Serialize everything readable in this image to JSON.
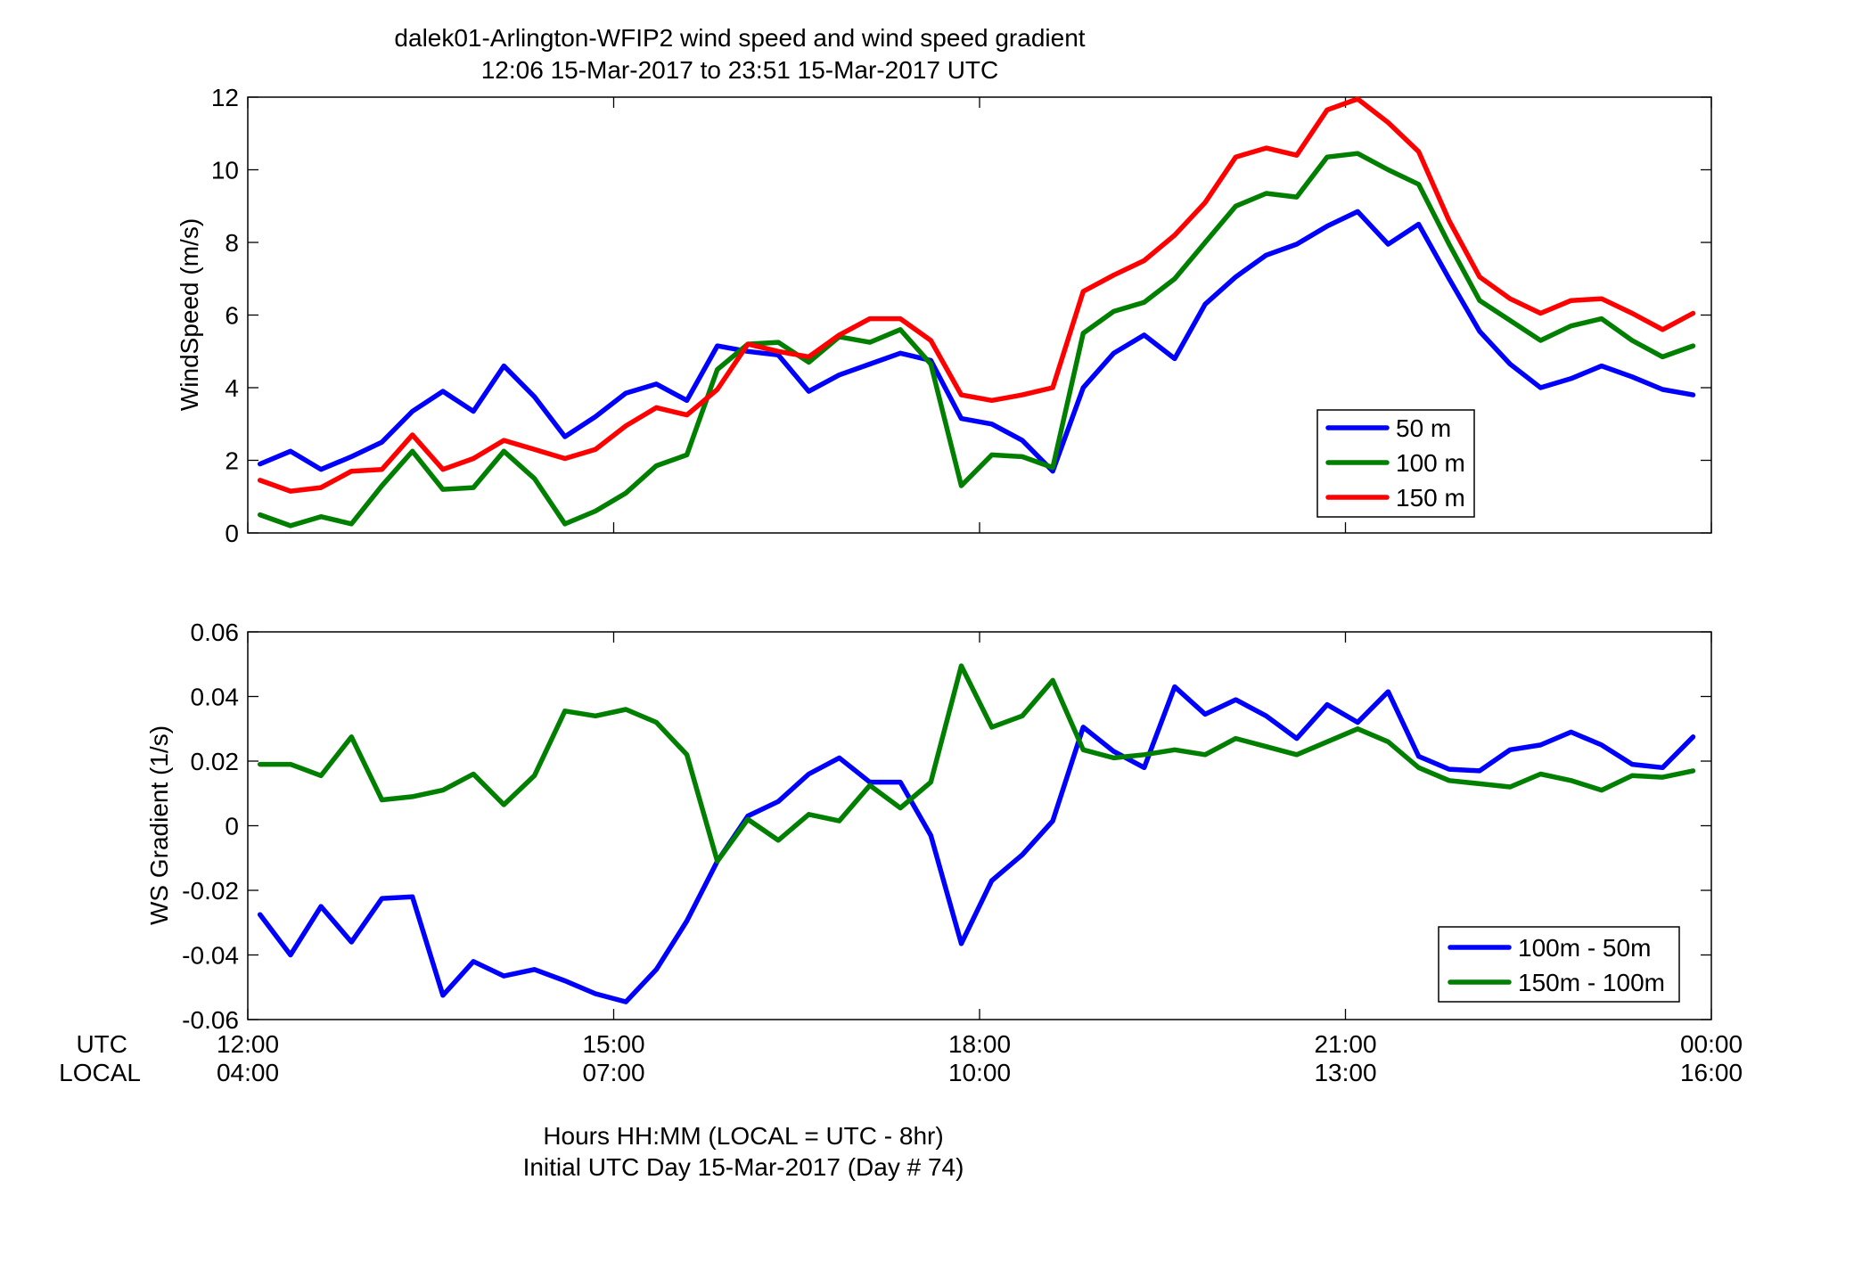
{
  "figure": {
    "title_line1": "dalek01-Arlington-WFIP2  wind speed and wind speed gradient",
    "title_line2": "12:06 15-Mar-2017 to 23:51 15-Mar-2017  UTC",
    "xlabel_line1": "Hours HH:MM  (LOCAL = UTC - 8hr)",
    "xlabel_line2": "Initial UTC Day 15-Mar-2017 (Day # 74)",
    "row_label_utc": "UTC",
    "row_label_local": "LOCAL",
    "utc_ticks": [
      "12:00",
      "15:00",
      "18:00",
      "21:00",
      "00:00"
    ],
    "local_ticks": [
      "04:00",
      "07:00",
      "10:00",
      "13:00",
      "16:00"
    ],
    "x_tick_hours": [
      12,
      15,
      18,
      21,
      24
    ],
    "colors": {
      "blue": "#0000ff",
      "green": "#007f00",
      "red": "#ff0000"
    }
  },
  "chart_data": [
    {
      "type": "line",
      "ylabel": "WindSpeed (m/s)",
      "ylim": [
        0,
        12
      ],
      "yticks": [
        "0",
        "2",
        "4",
        "6",
        "8",
        "10",
        "12"
      ],
      "xlim": [
        12,
        24
      ],
      "x_unit": "hours UTC",
      "legend_position": "lower-right",
      "x": [
        12.1,
        12.35,
        12.6,
        12.85,
        13.1,
        13.35,
        13.6,
        13.85,
        14.1,
        14.35,
        14.6,
        14.85,
        15.1,
        15.35,
        15.6,
        15.85,
        16.1,
        16.35,
        16.6,
        16.85,
        17.1,
        17.35,
        17.6,
        17.85,
        18.1,
        18.35,
        18.6,
        18.85,
        19.1,
        19.35,
        19.6,
        19.85,
        20.1,
        20.35,
        20.6,
        20.85,
        21.1,
        21.35,
        21.6,
        21.85,
        22.1,
        22.35,
        22.6,
        22.85,
        23.1,
        23.35,
        23.6,
        23.85
      ],
      "series": [
        {
          "name": "50 m",
          "color": "#0000ff",
          "values": [
            1.9,
            2.25,
            1.75,
            2.1,
            2.5,
            3.35,
            3.9,
            3.35,
            4.6,
            3.75,
            2.65,
            3.2,
            3.85,
            4.1,
            3.65,
            5.15,
            5.0,
            4.9,
            3.9,
            4.35,
            4.65,
            4.95,
            4.75,
            3.15,
            3.0,
            2.55,
            1.7,
            4.0,
            4.95,
            5.45,
            4.8,
            6.3,
            7.05,
            7.65,
            7.95,
            8.45,
            8.85,
            7.95,
            8.5,
            7.0,
            5.55,
            4.65,
            4.0,
            4.25,
            4.6,
            4.3,
            3.95,
            3.8
          ]
        },
        {
          "name": "100 m",
          "color": "#007f00",
          "values": [
            0.5,
            0.2,
            0.45,
            0.25,
            1.3,
            2.25,
            1.2,
            1.25,
            2.25,
            1.5,
            0.25,
            0.6,
            1.1,
            1.85,
            2.15,
            4.5,
            5.2,
            5.25,
            4.7,
            5.4,
            5.25,
            5.6,
            4.65,
            1.3,
            2.15,
            2.1,
            1.8,
            5.5,
            6.1,
            6.35,
            7.0,
            8.0,
            9.0,
            9.35,
            9.25,
            10.35,
            10.45,
            10.0,
            9.6,
            7.95,
            6.4,
            5.85,
            5.3,
            5.7,
            5.9,
            5.3,
            4.85,
            5.15
          ]
        },
        {
          "name": "150 m",
          "color": "#ff0000",
          "values": [
            1.45,
            1.15,
            1.25,
            1.7,
            1.75,
            2.7,
            1.75,
            2.05,
            2.55,
            2.3,
            2.05,
            2.3,
            2.95,
            3.45,
            3.25,
            3.95,
            5.2,
            5.0,
            4.85,
            5.45,
            5.9,
            5.9,
            5.3,
            3.8,
            3.65,
            3.8,
            4.0,
            6.65,
            7.1,
            7.5,
            8.2,
            9.1,
            10.35,
            10.6,
            10.4,
            11.65,
            11.95,
            11.3,
            10.5,
            8.6,
            7.05,
            6.45,
            6.05,
            6.4,
            6.45,
            6.05,
            5.6,
            6.05
          ]
        }
      ]
    },
    {
      "type": "line",
      "ylabel": "WS Gradient (1/s)",
      "ylim": [
        -0.06,
        0.06
      ],
      "yticks": [
        "-0.06",
        "-0.04",
        "-0.02",
        "0",
        "0.02",
        "0.04",
        "0.06"
      ],
      "xlim": [
        12,
        24
      ],
      "x_unit": "hours UTC",
      "legend_position": "lower-right",
      "x": [
        12.1,
        12.35,
        12.6,
        12.85,
        13.1,
        13.35,
        13.6,
        13.85,
        14.1,
        14.35,
        14.6,
        14.85,
        15.1,
        15.35,
        15.6,
        15.85,
        16.1,
        16.35,
        16.6,
        16.85,
        17.1,
        17.35,
        17.6,
        17.85,
        18.1,
        18.35,
        18.6,
        18.85,
        19.1,
        19.35,
        19.6,
        19.85,
        20.1,
        20.35,
        20.6,
        20.85,
        21.1,
        21.35,
        21.6,
        21.85,
        22.1,
        22.35,
        22.6,
        22.85,
        23.1,
        23.35,
        23.6,
        23.85
      ],
      "series": [
        {
          "name": "100m - 50m",
          "color": "#0000ff",
          "values": [
            -0.0275,
            -0.04,
            -0.025,
            -0.036,
            -0.0225,
            -0.022,
            -0.0525,
            -0.042,
            -0.0465,
            -0.0445,
            -0.048,
            -0.052,
            -0.0545,
            -0.0445,
            -0.0295,
            -0.011,
            0.003,
            0.0075,
            0.016,
            0.021,
            0.0135,
            0.0135,
            -0.003,
            -0.0365,
            -0.017,
            -0.009,
            0.0015,
            0.0305,
            0.023,
            0.018,
            0.043,
            0.0345,
            0.039,
            0.034,
            0.027,
            0.0375,
            0.032,
            0.0415,
            0.0215,
            0.0175,
            0.017,
            0.0235,
            0.025,
            0.029,
            0.025,
            0.019,
            0.018,
            0.0275
          ]
        },
        {
          "name": "150m - 100m",
          "color": "#007f00",
          "values": [
            0.019,
            0.019,
            0.0155,
            0.0275,
            0.008,
            0.009,
            0.011,
            0.016,
            0.0065,
            0.0155,
            0.0355,
            0.034,
            0.036,
            0.032,
            0.022,
            -0.011,
            0.002,
            -0.0045,
            0.0035,
            0.0015,
            0.0125,
            0.0055,
            0.0135,
            0.0495,
            0.0305,
            0.034,
            0.045,
            0.0235,
            0.021,
            0.022,
            0.0235,
            0.022,
            0.027,
            0.0245,
            0.022,
            0.026,
            0.03,
            0.026,
            0.018,
            0.014,
            0.013,
            0.012,
            0.016,
            0.014,
            0.011,
            0.0155,
            0.015,
            0.017
          ]
        }
      ]
    }
  ]
}
